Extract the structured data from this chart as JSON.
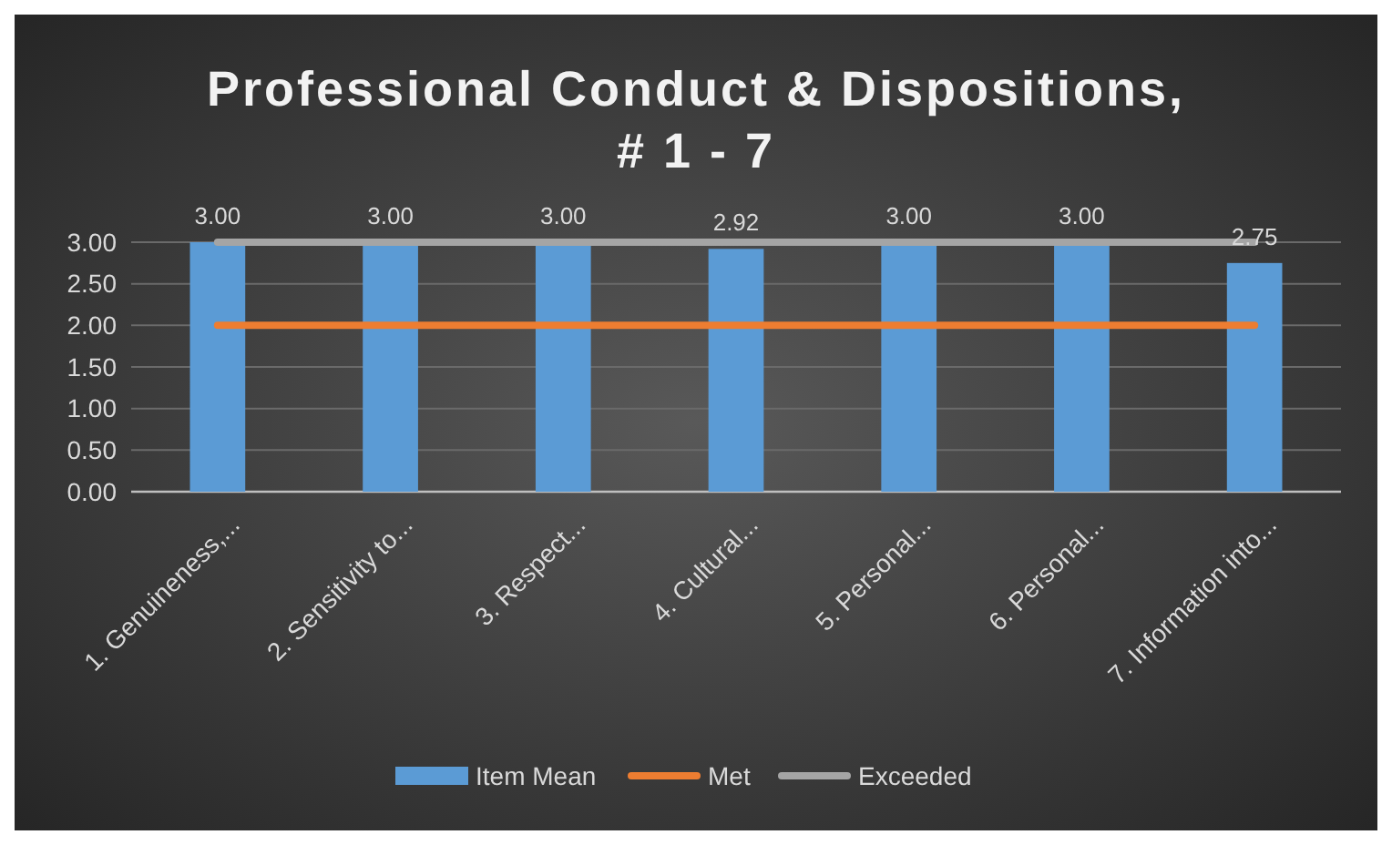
{
  "chart_data": {
    "type": "bar",
    "title": "Professional Conduct & Dispositions, # 1 - 7",
    "categories": [
      "1. Genuineness,...",
      "2. Sensitivity to...",
      "3. Respect...",
      "4. Cultural...",
      "5. Personal...",
      "6. Personal...",
      "7. Information into..."
    ],
    "series": [
      {
        "name": "Item Mean",
        "color": "#5b9bd5",
        "values": [
          3.0,
          3.0,
          3.0,
          2.92,
          3.0,
          3.0,
          2.75
        ],
        "value_labels": [
          "3.00",
          "3.00",
          "3.00",
          "2.92",
          "3.00",
          "3.00",
          "2.75"
        ]
      },
      {
        "name": "Met",
        "type": "line",
        "color": "#ed7d31",
        "values": [
          2,
          2,
          2,
          2,
          2,
          2,
          2
        ]
      },
      {
        "name": "Exceeded",
        "type": "line",
        "color": "#a5a5a5",
        "values": [
          3,
          3,
          3,
          3,
          3,
          3,
          3
        ]
      }
    ],
    "ylim": [
      0,
      3
    ],
    "yticks": [
      {
        "value": 0,
        "label": "0.00"
      },
      {
        "value": 0.5,
        "label": "0.50"
      },
      {
        "value": 1,
        "label": "1.00"
      },
      {
        "value": 1.5,
        "label": "1.50"
      },
      {
        "value": 2,
        "label": "2.00"
      },
      {
        "value": 2.5,
        "label": "2.50"
      },
      {
        "value": 3,
        "label": "3.00"
      }
    ],
    "grid": "y",
    "legend": "bottom"
  }
}
